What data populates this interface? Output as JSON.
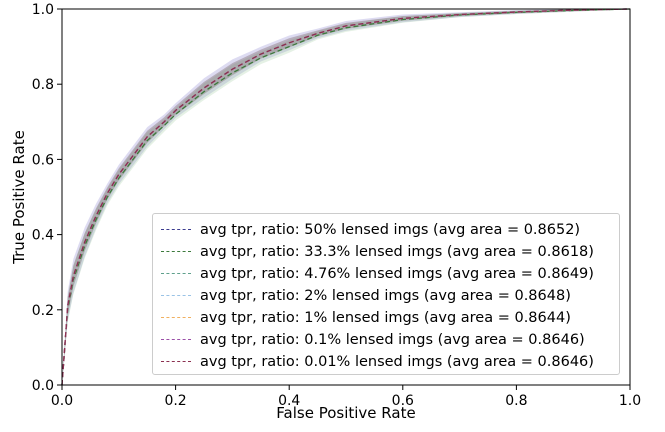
{
  "chart_data": {
    "type": "line",
    "title": "",
    "xlabel": "False Positive Rate",
    "ylabel": "True Positive Rate",
    "xlim": [
      0.0,
      1.0
    ],
    "ylim": [
      0.0,
      1.0
    ],
    "xticks": [
      "0.0",
      "0.2",
      "0.4",
      "0.6",
      "0.8",
      "1.0"
    ],
    "yticks": [
      "0.0",
      "0.2",
      "0.4",
      "0.6",
      "0.8",
      "1.0"
    ],
    "grid": false,
    "legend_position": "lower-right",
    "x": [
      0.0,
      0.01,
      0.02,
      0.04,
      0.06,
      0.08,
      0.1,
      0.12,
      0.15,
      0.18,
      0.2,
      0.25,
      0.3,
      0.35,
      0.4,
      0.45,
      0.5,
      0.6,
      0.7,
      0.8,
      0.9,
      1.0
    ],
    "band_halfwidth": [
      0.0,
      0.03,
      0.035,
      0.03,
      0.025,
      0.02,
      0.02,
      0.02,
      0.02,
      0.015,
      0.015,
      0.02,
      0.02,
      0.015,
      0.015,
      0.01,
      0.01,
      0.008,
      0.005,
      0.004,
      0.003,
      0.0
    ],
    "series": [
      {
        "name": "avg tpr, ratio: 50% lensed imgs (avg area = 0.8652)",
        "color": "#3b3b8f",
        "values": [
          0.0,
          0.21,
          0.29,
          0.38,
          0.45,
          0.51,
          0.56,
          0.6,
          0.66,
          0.7,
          0.73,
          0.79,
          0.84,
          0.88,
          0.91,
          0.935,
          0.955,
          0.975,
          0.985,
          0.992,
          0.997,
          1.0
        ]
      },
      {
        "name": "avg tpr, ratio: 33.3% lensed imgs (avg area = 0.8618)",
        "color": "#3c7a3c",
        "values": [
          0.0,
          0.2,
          0.28,
          0.37,
          0.44,
          0.5,
          0.55,
          0.59,
          0.65,
          0.69,
          0.72,
          0.78,
          0.83,
          0.87,
          0.9,
          0.93,
          0.95,
          0.972,
          0.984,
          0.991,
          0.996,
          1.0
        ]
      },
      {
        "name": "avg tpr, ratio: 4.76% lensed imgs (avg area = 0.8649)",
        "color": "#5fa08c",
        "values": [
          0.0,
          0.21,
          0.29,
          0.38,
          0.45,
          0.51,
          0.56,
          0.6,
          0.66,
          0.7,
          0.73,
          0.79,
          0.84,
          0.88,
          0.91,
          0.935,
          0.955,
          0.975,
          0.985,
          0.992,
          0.997,
          1.0
        ]
      },
      {
        "name": "avg tpr, ratio: 2% lensed imgs (avg area = 0.8648)",
        "color": "#9ac3e6",
        "values": [
          0.0,
          0.21,
          0.29,
          0.38,
          0.45,
          0.51,
          0.56,
          0.6,
          0.66,
          0.7,
          0.73,
          0.79,
          0.84,
          0.88,
          0.91,
          0.935,
          0.955,
          0.975,
          0.985,
          0.992,
          0.997,
          1.0
        ]
      },
      {
        "name": "avg tpr, ratio: 1% lensed imgs (avg area = 0.8644)",
        "color": "#f0b060",
        "values": [
          0.0,
          0.21,
          0.29,
          0.38,
          0.45,
          0.51,
          0.56,
          0.6,
          0.66,
          0.7,
          0.73,
          0.79,
          0.84,
          0.88,
          0.91,
          0.935,
          0.955,
          0.975,
          0.985,
          0.992,
          0.997,
          1.0
        ]
      },
      {
        "name": "avg tpr, ratio: 0.1% lensed imgs (avg area = 0.8646)",
        "color": "#9b4fa8",
        "values": [
          0.0,
          0.21,
          0.29,
          0.38,
          0.45,
          0.51,
          0.56,
          0.6,
          0.66,
          0.7,
          0.73,
          0.79,
          0.84,
          0.88,
          0.91,
          0.935,
          0.955,
          0.975,
          0.985,
          0.992,
          0.997,
          1.0
        ]
      },
      {
        "name": "avg tpr, ratio: 0.01% lensed imgs (avg area = 0.8646)",
        "color": "#8b3050",
        "values": [
          0.0,
          0.21,
          0.29,
          0.38,
          0.45,
          0.51,
          0.56,
          0.6,
          0.66,
          0.7,
          0.73,
          0.79,
          0.84,
          0.88,
          0.91,
          0.935,
          0.955,
          0.975,
          0.985,
          0.992,
          0.997,
          1.0
        ]
      }
    ]
  }
}
